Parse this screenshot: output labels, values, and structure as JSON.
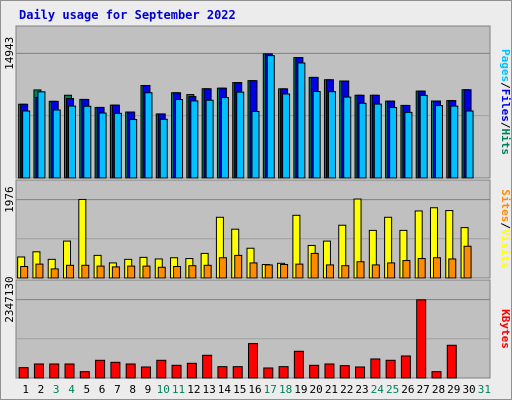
{
  "chart_data": {
    "type": "bar",
    "title": "Daily usage for September 2022",
    "colors": {
      "title": "#0000cc",
      "background": "#ececec",
      "panel": "#c0c0c0",
      "hits": "#00805c",
      "files": "#0000e6",
      "pages": "#00c0ff",
      "visits": "#ffff00",
      "sites": "#ff8c00",
      "kbytes": "#ff0000",
      "weekday_label": "#000000",
      "weekend_label": "#00805c"
    },
    "categories": [
      "1",
      "2",
      "3",
      "4",
      "5",
      "6",
      "7",
      "8",
      "9",
      "10",
      "11",
      "12",
      "13",
      "14",
      "15",
      "16",
      "17",
      "18",
      "19",
      "20",
      "21",
      "22",
      "23",
      "24",
      "25",
      "26",
      "27",
      "28",
      "29",
      "30",
      "31"
    ],
    "weekend_days": [
      "3",
      "4",
      "10",
      "11",
      "17",
      "18",
      "24",
      "25",
      "31"
    ],
    "panels": [
      {
        "id": "hits-panel",
        "ymax_label": "14943",
        "ymax": 14943,
        "axis_label_parts": [
          {
            "text": "Pages",
            "color": "#00c0ff"
          },
          {
            "text": "Files",
            "color": "#0000e6"
          },
          {
            "text": "Hits",
            "color": "#00805c"
          }
        ],
        "series": [
          {
            "name": "Hits",
            "values": [
              8840,
              10560,
              9190,
              9920,
              9420,
              8460,
              8740,
              7910,
              11090,
              7680,
              10220,
              10000,
              10700,
              10770,
              11440,
              11670,
              14880,
              10690,
              14440,
              12060,
              11780,
              11630,
              9920,
              9920,
              9220,
              8700,
              10420,
              9230,
              9280,
              10580,
              null
            ]
          },
          {
            "name": "Files",
            "values": [
              8840,
              9660,
              9190,
              9530,
              9420,
              8460,
              8740,
              7910,
              11090,
              7680,
              10220,
              9760,
              10700,
              10770,
              11440,
              11670,
              14880,
              10690,
              14440,
              12060,
              11780,
              11630,
              9920,
              9920,
              9220,
              8700,
              10420,
              9230,
              9280,
              10580,
              null
            ]
          },
          {
            "name": "Pages",
            "values": [
              8030,
              10330,
              8150,
              8620,
              8600,
              7790,
              7750,
              7010,
              10220,
              7040,
              9410,
              9240,
              9320,
              9640,
              10290,
              7980,
              14670,
              10070,
              13790,
              10370,
              10350,
              9700,
              8960,
              8860,
              8450,
              7870,
              9910,
              8680,
              8620,
              8030,
              null
            ]
          }
        ]
      },
      {
        "id": "visits-panel",
        "ymax_label": "1976",
        "ymax": 1976,
        "axis_label_parts": [
          {
            "text": "Sites",
            "color": "#ff8c00"
          },
          {
            "text": "Visits",
            "color": "#ffff00"
          }
        ],
        "series": [
          {
            "name": "Visits",
            "values": [
              530,
              660,
              470,
              930,
              1980,
              570,
              380,
              470,
              520,
              480,
              510,
              490,
              620,
              1530,
              1230,
              750,
              340,
              370,
              1580,
              820,
              930,
              1330,
              1990,
              1200,
              1530,
              1200,
              1690,
              1770,
              1700,
              1270,
              null
            ]
          },
          {
            "name": "Sites",
            "values": [
              290,
              350,
              230,
              320,
              320,
              300,
              280,
              300,
              300,
              270,
              290,
              310,
              320,
              510,
              570,
              380,
              330,
              340,
              350,
              620,
              330,
              310,
              410,
              330,
              380,
              440,
              490,
              510,
              480,
              800,
              null
            ]
          }
        ]
      },
      {
        "id": "kbytes-panel",
        "ymax_label": "2347130",
        "ymax": 2347130,
        "axis_label_parts": [
          {
            "text": "KBytes",
            "color": "#ff0000"
          }
        ],
        "series": [
          {
            "name": "KBytes",
            "values": [
              310000,
              420000,
              420000,
              420000,
              190000,
              530000,
              470000,
              420000,
              330000,
              530000,
              380000,
              440000,
              680000,
              340000,
              340000,
              1030000,
              300000,
              340000,
              800000,
              380000,
              420000,
              370000,
              330000,
              570000,
              530000,
              660000,
              2340000,
              190000,
              980000,
              null,
              null
            ]
          }
        ]
      }
    ]
  }
}
